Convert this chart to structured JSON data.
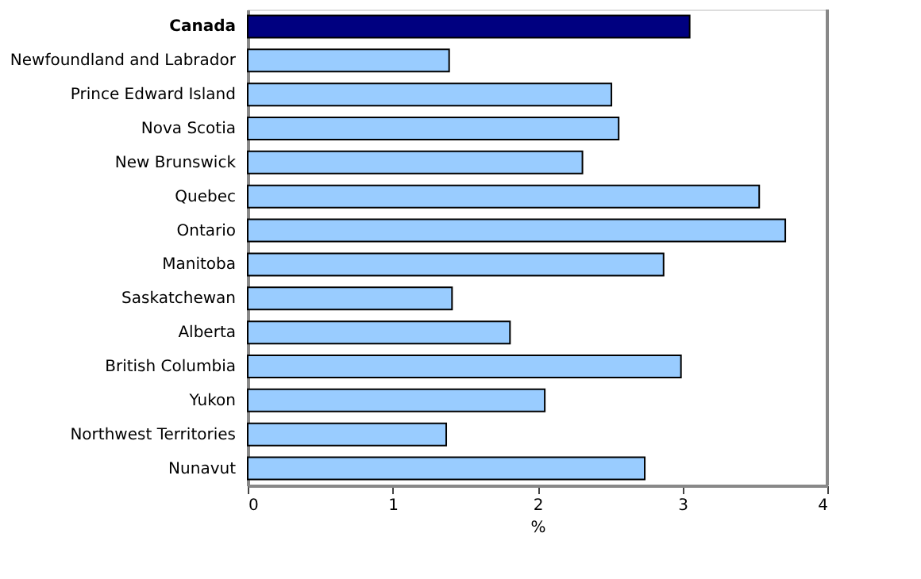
{
  "chart_data": {
    "type": "bar",
    "orientation": "horizontal",
    "xlabel": "%",
    "categories": [
      "Canada",
      "Newfoundland and Labrador",
      "Prince Edward Island",
      "Nova Scotia",
      "New Brunswick",
      "Quebec",
      "Ontario",
      "Manitoba",
      "Saskatchewan",
      "Alberta",
      "British Columbia",
      "Yukon",
      "Northwest Territories",
      "Nunavut"
    ],
    "values": [
      3.05,
      1.39,
      2.51,
      2.56,
      2.31,
      3.53,
      3.71,
      2.87,
      1.41,
      1.81,
      2.99,
      2.05,
      1.37,
      2.74
    ],
    "colors": [
      "#000080",
      "#99ccff",
      "#99ccff",
      "#99ccff",
      "#99ccff",
      "#99ccff",
      "#99ccff",
      "#99ccff",
      "#99ccff",
      "#99ccff",
      "#99ccff",
      "#99ccff",
      "#99ccff",
      "#99ccff"
    ],
    "xlim": [
      0,
      4
    ],
    "xticks": [
      0,
      1,
      2,
      3,
      4
    ],
    "grid": false
  }
}
